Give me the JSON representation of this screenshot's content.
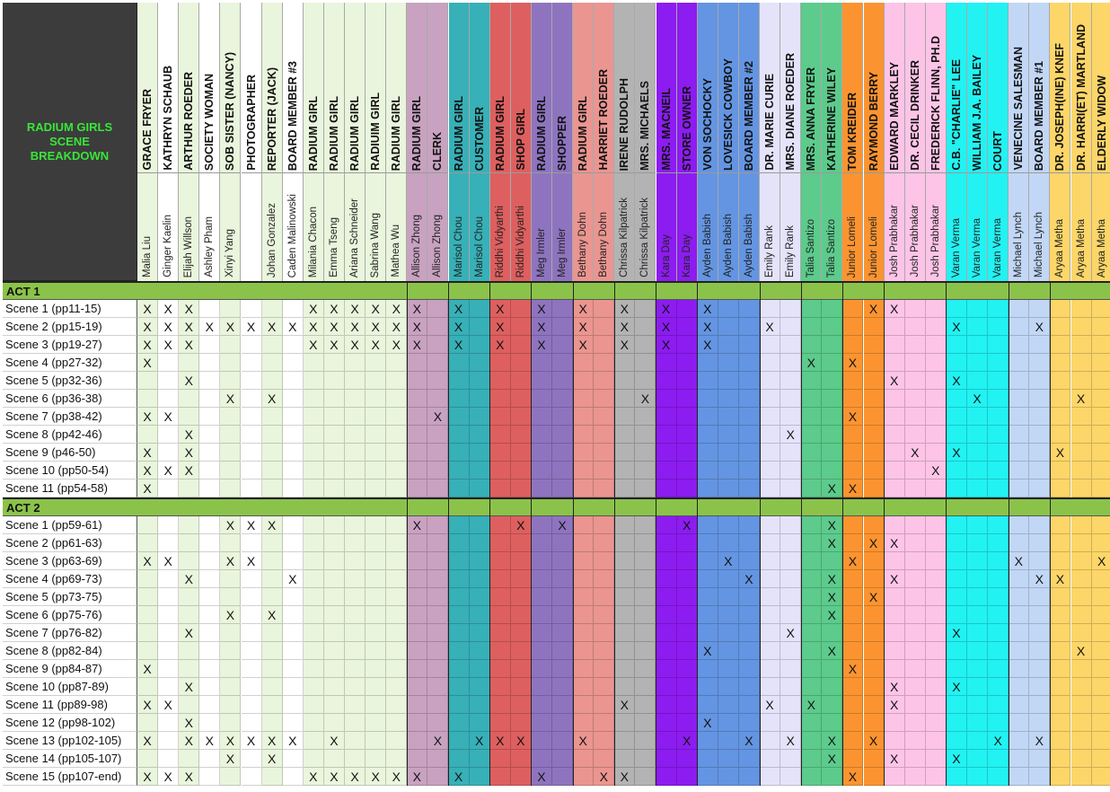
{
  "corner": {
    "title": "RADIUM GIRLS\nSCENE\nBREAKDOWN"
  },
  "columns": [
    {
      "role": "GRACE FRYER",
      "actor": "Malia Liu",
      "color": "#e9f5dc"
    },
    {
      "role": "KATHRYN SCHAUB",
      "actor": "Ginger Kaelin",
      "color": "#ffffff"
    },
    {
      "role": "ARTHUR ROEDER",
      "actor": "Elijah Willson",
      "color": "#e9f5dc"
    },
    {
      "role": "SOCIETY WOMAN",
      "actor": "Ashley Pham",
      "color": "#ffffff"
    },
    {
      "role": "SOB SISTER (NANCY)",
      "actor": "Xinyi Yang",
      "color": "#e9f5dc"
    },
    {
      "role": "PHOTOGRAPHER",
      "actor": "",
      "color": "#ffffff"
    },
    {
      "role": "REPORTER (JACK)",
      "actor": "Johan Gonzalez",
      "color": "#e9f5dc"
    },
    {
      "role": "BOARD MEMBER #3",
      "actor": "Caden Malinowski",
      "color": "#ffffff"
    },
    {
      "role": "RADIUM GIRL",
      "actor": "Milania Chacon",
      "color": "#e9f5dc"
    },
    {
      "role": "RADIUM GIRL",
      "actor": "Emma Tseng",
      "color": "#e9f5dc"
    },
    {
      "role": "RADIUM GIRL",
      "actor": "Ariana Schneider",
      "color": "#e9f5dc"
    },
    {
      "role": "RADIUIM GIRL",
      "actor": "Sabrina Wang",
      "color": "#e9f5dc"
    },
    {
      "role": "RADIUM GIRL",
      "actor": "Mathea Wu",
      "color": "#e9f5dc"
    },
    {
      "role": "RADIUM GIRL",
      "actor": "Allison Zhong",
      "color": "#c8a2c0"
    },
    {
      "role": "CLERK",
      "actor": "Allison Zhong",
      "color": "#c8a2c0"
    },
    {
      "role": "RADIUM GIRL",
      "actor": "Marisol Chou",
      "color": "#37b0b7"
    },
    {
      "role": "CUSTOMER",
      "actor": "Marisol Chou",
      "color": "#37b0b7"
    },
    {
      "role": "RADIUM GIRL",
      "actor": "Riddhi Vidyarthi",
      "color": "#de5f5f"
    },
    {
      "role": "SHOP GIRL",
      "actor": "Riddhi Vidyarthi",
      "color": "#de5f5f"
    },
    {
      "role": "RADIUM GIRL",
      "actor": "Meg Irmler",
      "color": "#8e74bf"
    },
    {
      "role": "SHOPPER",
      "actor": "Meg Irmler",
      "color": "#8e74bf"
    },
    {
      "role": "RADIUM GIRL",
      "actor": "Bethany Dohn",
      "color": "#ea9590"
    },
    {
      "role": "HARRIET ROEDER",
      "actor": "Bethany Dohn",
      "color": "#ea9590"
    },
    {
      "role": "IRENE RUDOLPH",
      "actor": "Chrissa Kilpatrick",
      "color": "#b3b3b3"
    },
    {
      "role": "MRS. MICHAELS",
      "actor": "Chrissa Kilpatrick",
      "color": "#b3b3b3"
    },
    {
      "role": "MRS. MACNEIL",
      "actor": "Kara Day",
      "color": "#8c1cf0"
    },
    {
      "role": "STORE OWNER",
      "actor": "Kara Day",
      "color": "#8c1cf0"
    },
    {
      "role": "VON SOCHOCKY",
      "actor": "Ayden Babish",
      "color": "#6495e2"
    },
    {
      "role": "LOVESICK COWBOY",
      "actor": "Ayden Babish",
      "color": "#6495e2"
    },
    {
      "role": "BOARD MEMBER #2",
      "actor": "Ayden Babish",
      "color": "#6495e2"
    },
    {
      "role": "DR. MARIE CURIE",
      "actor": "Emily Rank",
      "color": "#e5e3fa"
    },
    {
      "role": "MRS. DIANE ROEDER",
      "actor": "Emily Rank",
      "color": "#e5e3fa"
    },
    {
      "role": "MRS. ANNA FRYER",
      "actor": "Talia Santizo",
      "color": "#5ccb8c"
    },
    {
      "role": "KATHERINE WILEY",
      "actor": "Talia Santizo",
      "color": "#5ccb8c"
    },
    {
      "role": "TOM KREIDER",
      "actor": "Junior Lomeli",
      "color": "#fb9430"
    },
    {
      "role": "RAYMOND BERRY",
      "actor": "Junior Lomeli",
      "color": "#fb9430"
    },
    {
      "role": "EDWARD MARKLEY",
      "actor": "Josh Prabhakar",
      "color": "#fdc4e7"
    },
    {
      "role": "DR. CECIL DRINKER",
      "actor": "Josh Prabhakar",
      "color": "#fdc4e7"
    },
    {
      "role": "FREDERICK FLINN, PH.D",
      "actor": "Josh Prabhakar",
      "color": "#fdc4e7"
    },
    {
      "role": "C.B. \"CHARLIE\" LEE",
      "actor": "Varan Verma",
      "color": "#22f2f2"
    },
    {
      "role": "WILLIAM J.A. BAILEY",
      "actor": "Varan Verma",
      "color": "#22f2f2"
    },
    {
      "role": "COURT",
      "actor": "Varan Verma",
      "color": "#22f2f2"
    },
    {
      "role": "VENECINE SALESMAN",
      "actor": "Michael Lynch",
      "color": "#c2d7f6"
    },
    {
      "role": "BOARD MEMBER #1",
      "actor": "Michael Lynch",
      "color": "#c2d7f6"
    },
    {
      "role": "DR. JOSEPH(INE) KNEF",
      "actor": "Aryaa Metha",
      "color": "#fcd668"
    },
    {
      "role": "DR. HARRI(ET) MARTLAND",
      "actor": "Aryaa Metha",
      "color": "#fcd668"
    },
    {
      "role": "ELDERLY WIDOW",
      "actor": "Aryaa Metha",
      "color": "#fcd668"
    }
  ],
  "acts": [
    {
      "label": "ACT 1",
      "scenes": [
        {
          "label": "Scene 1 (pp11-15)",
          "x": [
            0,
            1,
            2,
            8,
            9,
            10,
            11,
            12,
            13,
            15,
            17,
            19,
            21,
            23,
            25,
            27,
            35,
            36
          ]
        },
        {
          "label": "Scene 2 (pp15-19)",
          "x": [
            0,
            1,
            2,
            3,
            4,
            5,
            6,
            7,
            8,
            9,
            10,
            11,
            12,
            13,
            15,
            17,
            19,
            21,
            23,
            25,
            27,
            30,
            39,
            43
          ]
        },
        {
          "label": "Scene 3 (pp19-27)",
          "x": [
            0,
            1,
            2,
            8,
            9,
            10,
            11,
            12,
            13,
            15,
            17,
            19,
            21,
            23,
            25,
            27
          ]
        },
        {
          "label": "Scene 4 (pp27-32)",
          "x": [
            0,
            32,
            34
          ]
        },
        {
          "label": "Scene 5 (pp32-36)",
          "x": [
            2,
            36,
            39
          ]
        },
        {
          "label": "Scene 6 (pp36-38)",
          "x": [
            4,
            6,
            24,
            40,
            45
          ]
        },
        {
          "label": "Scene 7 (pp38-42)",
          "x": [
            0,
            1,
            14,
            34
          ]
        },
        {
          "label": "Scene 8 (pp42-46)",
          "x": [
            2,
            31
          ]
        },
        {
          "label": "Scene 9 (p46-50)",
          "x": [
            0,
            2,
            37,
            39,
            44
          ]
        },
        {
          "label": "Scene 10 (pp50-54)",
          "x": [
            0,
            1,
            2,
            38
          ]
        },
        {
          "label": "Scene 11 (pp54-58)",
          "x": [
            0,
            33,
            34
          ]
        }
      ]
    },
    {
      "label": "ACT 2",
      "scenes": [
        {
          "label": "Scene 1 (pp59-61)",
          "x": [
            4,
            5,
            6,
            13,
            18,
            20,
            26,
            33
          ]
        },
        {
          "label": "Scene 2 (pp61-63)",
          "x": [
            33,
            35,
            36
          ]
        },
        {
          "label": "Scene 3 (pp63-69)",
          "x": [
            0,
            1,
            4,
            5,
            28,
            34,
            42,
            46
          ]
        },
        {
          "label": "Scene 4 (pp69-73)",
          "x": [
            2,
            7,
            29,
            33,
            36,
            43,
            44
          ]
        },
        {
          "label": "Scene 5 (pp73-75)",
          "x": [
            33,
            35
          ]
        },
        {
          "label": "Scene 6 (pp75-76)",
          "x": [
            4,
            6,
            33
          ]
        },
        {
          "label": "Scene 7 (pp76-82)",
          "x": [
            2,
            31,
            39
          ]
        },
        {
          "label": "Scene 8 (pp82-84)",
          "x": [
            27,
            33,
            45
          ]
        },
        {
          "label": "Scene 9 (pp84-87)",
          "x": [
            0,
            34
          ]
        },
        {
          "label": "Scene 10 (pp87-89)",
          "x": [
            2,
            36,
            39
          ]
        },
        {
          "label": "Scene 11 (pp89-98)",
          "x": [
            0,
            1,
            23,
            30,
            32,
            36
          ]
        },
        {
          "label": "Scene 12 (pp98-102)",
          "x": [
            2,
            27
          ]
        },
        {
          "label": "Scene 13 (pp102-105)",
          "x": [
            0,
            2,
            3,
            4,
            5,
            6,
            7,
            9,
            14,
            16,
            17,
            18,
            21,
            26,
            29,
            31,
            33,
            35,
            41,
            43
          ]
        },
        {
          "label": "Scene 14 (pp105-107)",
          "x": [
            4,
            6,
            33,
            36,
            39
          ]
        },
        {
          "label": "Scene 15 (pp107-end)",
          "x": [
            0,
            1,
            2,
            8,
            9,
            10,
            11,
            12,
            13,
            15,
            19,
            22,
            23,
            34
          ]
        }
      ]
    }
  ],
  "mark": "X"
}
